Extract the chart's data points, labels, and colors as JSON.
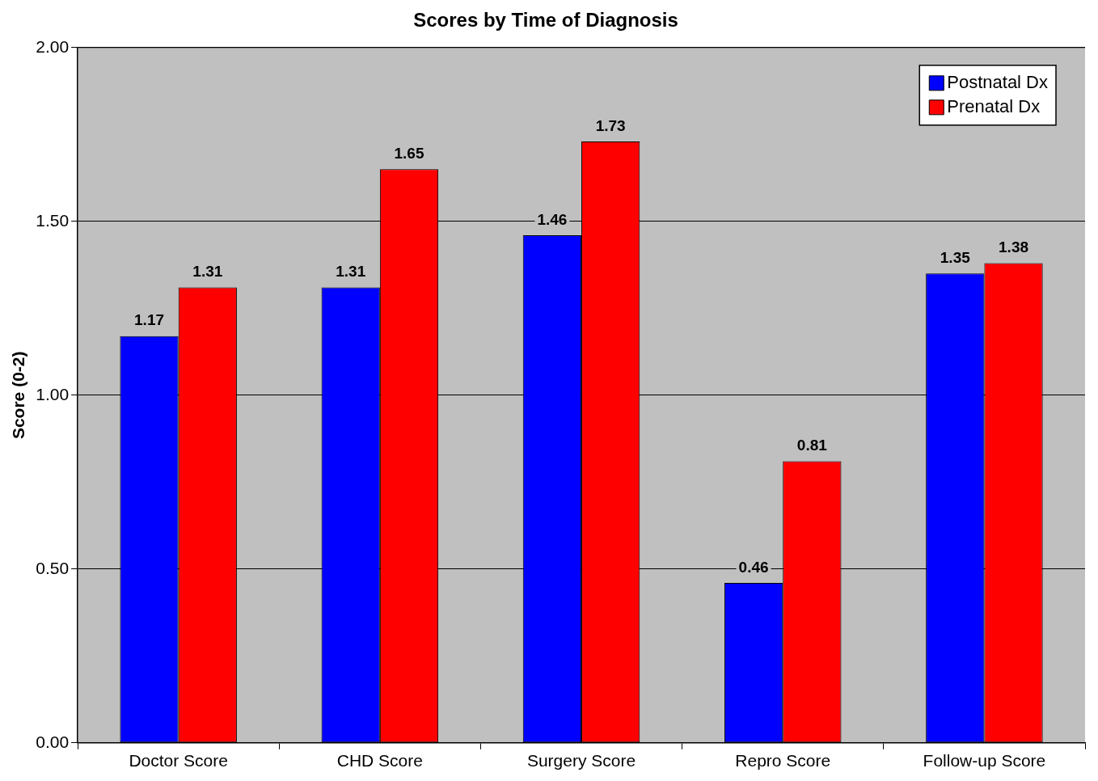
{
  "chart_data": {
    "type": "bar",
    "title": "Scores by Time of Diagnosis",
    "ylabel": "Score (0-2)",
    "categories": [
      "Doctor Score",
      "CHD Score",
      "Surgery Score",
      "Repro Score",
      "Follow-up Score"
    ],
    "series": [
      {
        "name": "Postnatal Dx",
        "color": "#0000ff",
        "values": [
          1.17,
          1.31,
          1.46,
          0.46,
          1.35
        ]
      },
      {
        "name": "Prenatal Dx",
        "color": "#ff0000",
        "values": [
          1.31,
          1.65,
          1.73,
          0.81,
          1.38
        ]
      }
    ],
    "ylim": [
      0,
      2
    ],
    "yticks": [
      {
        "value": 0,
        "label": "0.00"
      },
      {
        "value": 0.5,
        "label": "0.50"
      },
      {
        "value": 1,
        "label": "1.00"
      },
      {
        "value": 1.5,
        "label": "1.50"
      },
      {
        "value": 2,
        "label": "2.00"
      }
    ],
    "grid": "y",
    "legend": "top right",
    "data_labels": true
  }
}
